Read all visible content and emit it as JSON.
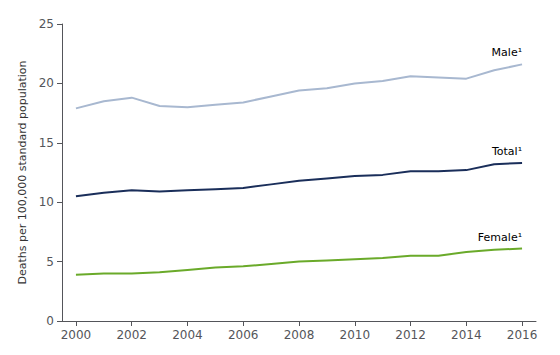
{
  "chart_data": {
    "type": "line",
    "x": [
      2000,
      2001,
      2002,
      2003,
      2004,
      2005,
      2006,
      2007,
      2008,
      2009,
      2010,
      2011,
      2012,
      2013,
      2014,
      2015,
      2016
    ],
    "series": [
      {
        "name": "Male¹",
        "color": "#a8b8d0",
        "values": [
          17.9,
          18.5,
          18.8,
          18.1,
          18.0,
          18.2,
          18.4,
          18.9,
          19.4,
          19.6,
          20.0,
          20.2,
          20.6,
          20.5,
          20.4,
          21.1,
          21.6
        ]
      },
      {
        "name": "Total¹",
        "color": "#1a2e5a",
        "values": [
          10.5,
          10.8,
          11.0,
          10.9,
          11.0,
          11.1,
          11.2,
          11.5,
          11.8,
          12.0,
          12.2,
          12.3,
          12.6,
          12.6,
          12.7,
          13.2,
          13.3
        ]
      },
      {
        "name": "Female¹",
        "color": "#6aaa2a",
        "values": [
          3.9,
          4.0,
          4.0,
          4.1,
          4.3,
          4.5,
          4.6,
          4.8,
          5.0,
          5.1,
          5.2,
          5.3,
          5.5,
          5.5,
          5.8,
          6.0,
          6.1
        ]
      }
    ],
    "ylabel": "Deaths per 100,000 standard population",
    "xlim": [
      1999.5,
      2016.5
    ],
    "xticks": [
      2000,
      2002,
      2004,
      2006,
      2008,
      2010,
      2012,
      2014,
      2016
    ],
    "ylim": [
      0,
      25
    ],
    "yticks": [
      0,
      5,
      10,
      15,
      20,
      25
    ],
    "grid": false
  }
}
